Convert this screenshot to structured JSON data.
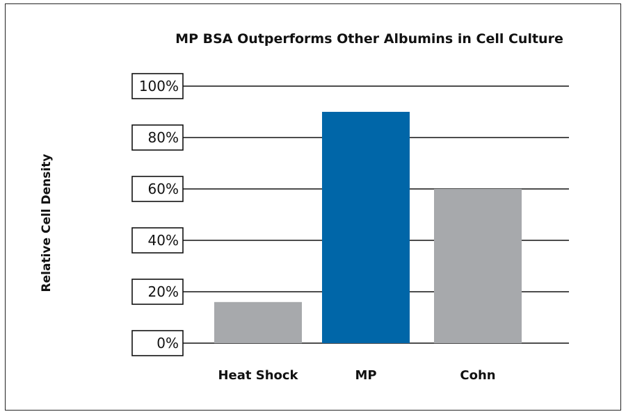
{
  "chart_data": {
    "type": "bar",
    "title": "MP BSA Outperforms Other Albumins in Cell Culture",
    "xlabel": "",
    "ylabel": "Relative Cell Density",
    "categories": [
      "Heat Shock",
      "MP",
      "Cohn"
    ],
    "values": [
      16,
      90,
      60
    ],
    "ylim": [
      0,
      100
    ],
    "yticks": [
      0,
      20,
      40,
      60,
      80,
      100
    ],
    "ytick_labels": [
      "0%",
      "20%",
      "40%",
      "60%",
      "80%",
      "100%"
    ],
    "colors": [
      "#a7a9ac",
      "#0066a8",
      "#a7a9ac"
    ],
    "grid": true,
    "legend": "none"
  }
}
